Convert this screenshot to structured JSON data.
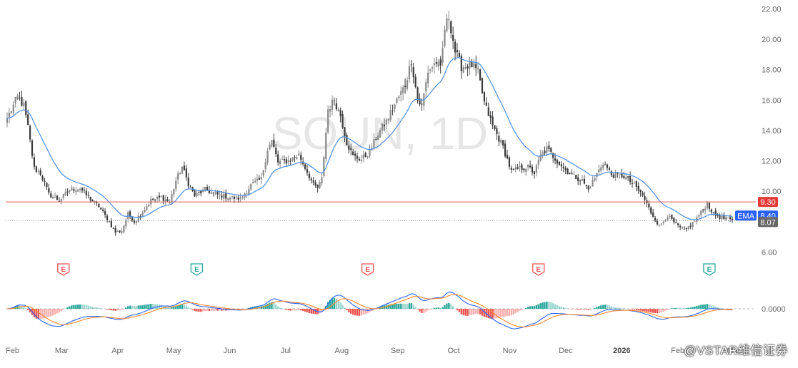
{
  "chart_data": {
    "type": "candlestick",
    "symbol_timeframe": "SOUN, 1D",
    "price_axis": {
      "ylim": [
        5.6,
        22.3
      ],
      "ticks": [
        "22.00",
        "20.00",
        "18.00",
        "16.00",
        "14.00",
        "12.00",
        "10.00",
        "6.00"
      ]
    },
    "x_ticks": [
      "Feb",
      "Mar",
      "Apr",
      "May",
      "Jun",
      "Jul",
      "Aug",
      "Sep",
      "Oct",
      "Nov",
      "Dec",
      "2026",
      "Feb",
      "Mar"
    ],
    "x_ticks_bold": [
      false,
      false,
      false,
      false,
      false,
      false,
      false,
      false,
      false,
      false,
      false,
      true,
      false,
      false
    ],
    "close_anchors": [
      [
        0,
        14.8
      ],
      [
        5,
        16.2
      ],
      [
        8,
        15.6
      ],
      [
        10,
        14.2
      ],
      [
        13,
        11.5
      ],
      [
        16,
        11.2
      ],
      [
        20,
        9.8
      ],
      [
        25,
        9.4
      ],
      [
        30,
        10.1
      ],
      [
        35,
        10.2
      ],
      [
        39,
        9.6
      ],
      [
        44,
        9.0
      ],
      [
        48,
        8.2
      ],
      [
        52,
        7.3
      ],
      [
        55,
        7.4
      ],
      [
        58,
        8.5
      ],
      [
        61,
        8.0
      ],
      [
        64,
        8.5
      ],
      [
        69,
        9.4
      ],
      [
        74,
        9.6
      ],
      [
        78,
        9.3
      ],
      [
        81,
        10.7
      ],
      [
        84,
        11.6
      ],
      [
        87,
        10.5
      ],
      [
        90,
        9.7
      ],
      [
        95,
        10.1
      ],
      [
        100,
        9.8
      ],
      [
        107,
        9.6
      ],
      [
        112,
        9.5
      ],
      [
        117,
        10.4
      ],
      [
        122,
        10.8
      ],
      [
        125,
        12.8
      ],
      [
        127,
        13.3
      ],
      [
        130,
        11.9
      ],
      [
        135,
        12.0
      ],
      [
        140,
        12.4
      ],
      [
        144,
        11.3
      ],
      [
        147,
        10.4
      ],
      [
        149,
        10.2
      ],
      [
        151,
        10.8
      ],
      [
        154,
        15.4
      ],
      [
        157,
        16.0
      ],
      [
        160,
        15.0
      ],
      [
        163,
        13.2
      ],
      [
        166,
        12.3
      ],
      [
        170,
        12.1
      ],
      [
        174,
        12.6
      ],
      [
        178,
        13.8
      ],
      [
        182,
        14.6
      ],
      [
        186,
        15.7
      ],
      [
        191,
        17.0
      ],
      [
        194,
        18.6
      ],
      [
        197,
        16.0
      ],
      [
        199,
        15.6
      ],
      [
        202,
        17.9
      ],
      [
        206,
        18.5
      ],
      [
        208,
        18.0
      ],
      [
        210,
        20.7
      ],
      [
        212,
        21.5
      ],
      [
        215,
        19.2
      ],
      [
        218,
        18.2
      ],
      [
        223,
        18.3
      ],
      [
        226,
        17.8
      ],
      [
        229,
        15.8
      ],
      [
        233,
        14.3
      ],
      [
        238,
        12.9
      ],
      [
        242,
        11.3
      ],
      [
        246,
        11.5
      ],
      [
        250,
        11.6
      ],
      [
        253,
        11.2
      ],
      [
        256,
        12.3
      ],
      [
        259,
        12.8
      ],
      [
        264,
        12.0
      ],
      [
        268,
        11.4
      ],
      [
        272,
        11.0
      ],
      [
        276,
        10.7
      ],
      [
        279,
        10.1
      ],
      [
        282,
        10.9
      ],
      [
        286,
        11.9
      ],
      [
        290,
        11.1
      ],
      [
        296,
        11.0
      ],
      [
        301,
        10.4
      ],
      [
        305,
        9.7
      ],
      [
        309,
        8.6
      ],
      [
        313,
        7.7
      ],
      [
        317,
        8.4
      ],
      [
        321,
        7.8
      ],
      [
        325,
        7.4
      ],
      [
        329,
        7.9
      ],
      [
        333,
        8.6
      ],
      [
        336,
        9.2
      ],
      [
        339,
        8.5
      ],
      [
        344,
        8.2
      ],
      [
        348,
        8.07
      ]
    ],
    "ema_label": "EMA",
    "ema_value": "8.40",
    "horizontal_line_value": 9.3,
    "horizontal_line_label": "9.30",
    "last_price_value": 8.07,
    "last_price_label": "8.07",
    "earnings_markers": [
      {
        "letter": "E",
        "index": 27,
        "status": "negative"
      },
      {
        "letter": "E",
        "index": 91,
        "status": "positive"
      },
      {
        "letter": "E",
        "index": 173,
        "status": "negative"
      },
      {
        "letter": "E",
        "index": 255,
        "status": "negative"
      },
      {
        "letter": "E",
        "index": 337,
        "status": "positive"
      }
    ],
    "macd_zero_label": "0.0000",
    "watermark": "SOUN, 1D",
    "colors": {
      "up": "#888888",
      "down": "#3a3a3a",
      "ema": "#4a8fe7",
      "hline": "#e05a5a",
      "hline_label": "#e53935",
      "ema_label": "#2962ff",
      "last_label": "#666666",
      "hist_pos": "#26a69a",
      "hist_neg": "#ef5350",
      "macd": "#2962ff",
      "signal": "#ff8a2a",
      "earn_neg": "#ef5350",
      "earn_pos": "#26a69a"
    }
  },
  "credit": "@VSTAR维信证券"
}
